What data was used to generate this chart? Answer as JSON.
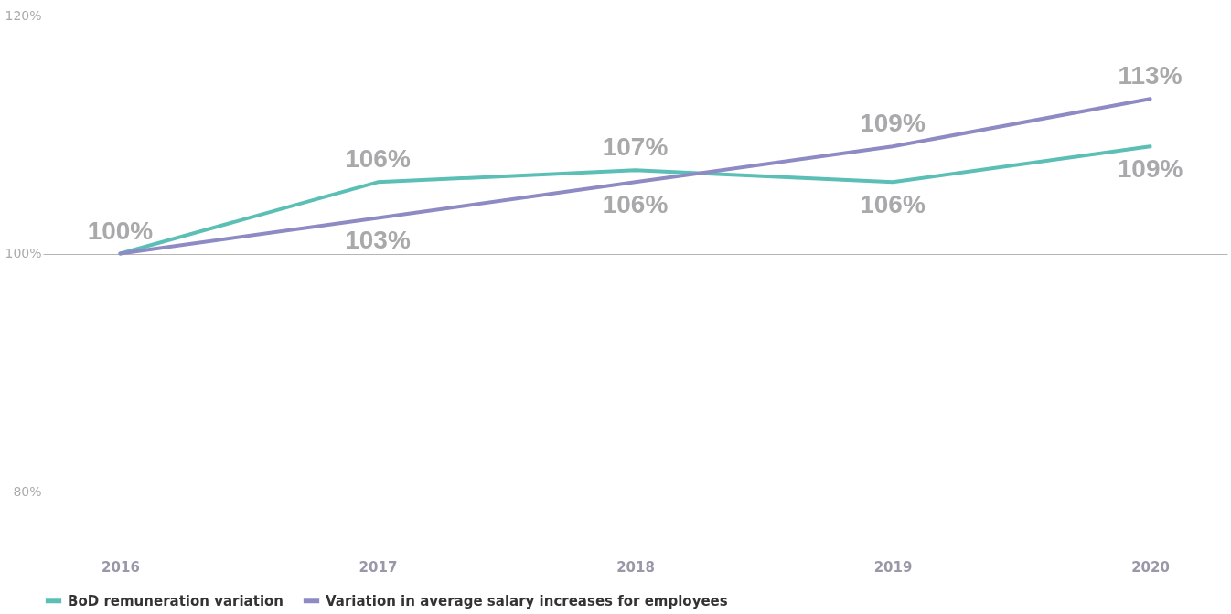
{
  "chart_data": {
    "type": "line",
    "categories": [
      "2016",
      "2017",
      "2018",
      "2019",
      "2020"
    ],
    "series": [
      {
        "name": "BoD remuneration variation",
        "color": "#5bbfb5",
        "values": [
          100,
          106,
          107,
          106,
          109
        ],
        "value_labels": [
          "100%",
          "106%",
          "107%",
          "106%",
          "109%"
        ]
      },
      {
        "name": "Variation in average salary increases for employees",
        "color": "#8d8ac4",
        "values": [
          100,
          103,
          106,
          109,
          113
        ],
        "value_labels": [
          null,
          "103%",
          "106%",
          "109%",
          "113%"
        ]
      }
    ],
    "ylim": [
      80,
      120
    ],
    "yticks": [
      {
        "value": 80,
        "label": "80%"
      },
      {
        "value": 100,
        "label": "100%"
      },
      {
        "value": 120,
        "label": "120%"
      }
    ],
    "grid": "y",
    "legend": "bottom left",
    "marker": "none",
    "line_style": "solid"
  }
}
